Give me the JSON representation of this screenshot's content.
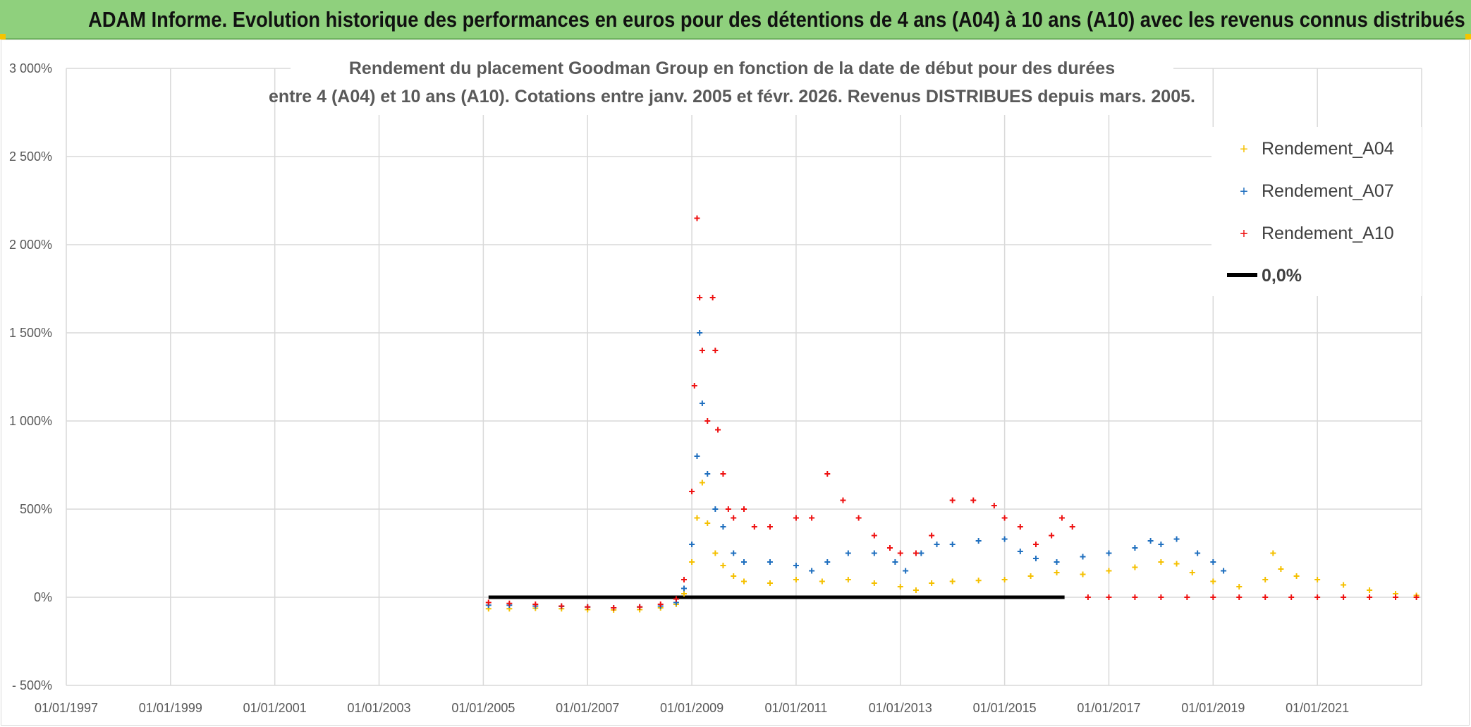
{
  "header": {
    "banner": "ADAM Informe. Evolution historique des performances en euros pour des détentions de 4 ans (A04) à 10 ans (A10) avec les revenus connus distribués"
  },
  "colors": {
    "banner_bg": "#8fd07d",
    "a04": "#f5c000",
    "a07": "#1f6fbf",
    "a10": "#ee1111",
    "zero": "#000000",
    "grid": "#d9d9d9"
  },
  "chart_data": {
    "type": "scatter",
    "title_line1": "Rendement du placement Goodman Group en fonction de la date de début pour des durées",
    "title_line2": "entre 4 (A04) et 10 ans (A10). Cotations entre janv. 2005 et févr. 2026. Revenus DISTRIBUES depuis mars. 2005.",
    "ylim": [
      -500,
      3000
    ],
    "yticks": [
      -500,
      0,
      500,
      1000,
      1500,
      2000,
      2500,
      3000
    ],
    "ytick_labels": [
      "- 500%",
      "0%",
      "500%",
      "1 000%",
      "1 500%",
      "2 000%",
      "2 500%",
      "3 000%"
    ],
    "xlim": [
      1997.0,
      2023.0
    ],
    "xticks": [
      1997,
      1999,
      2001,
      2003,
      2005,
      2007,
      2009,
      2011,
      2013,
      2015,
      2017,
      2019,
      2021
    ],
    "xtick_labels": [
      "01/01/1997",
      "01/01/1999",
      "01/01/2001",
      "01/01/2003",
      "01/01/2005",
      "01/01/2007",
      "01/01/2009",
      "01/01/2011",
      "01/01/2013",
      "01/01/2015",
      "01/01/2017",
      "01/01/2019",
      "01/01/2021"
    ],
    "grid": true,
    "legend_position": "top-right",
    "series": [
      {
        "name": "Rendement_A04",
        "color": "#f5c000",
        "x": [
          2005.1,
          2005.5,
          2006.0,
          2006.5,
          2007.0,
          2007.5,
          2008.0,
          2008.4,
          2008.7,
          2008.85,
          2009.0,
          2009.1,
          2009.2,
          2009.3,
          2009.45,
          2009.6,
          2009.8,
          2010.0,
          2010.5,
          2011.0,
          2011.5,
          2012.0,
          2012.5,
          2013.0,
          2013.3,
          2013.6,
          2014.0,
          2014.5,
          2015.0,
          2015.5,
          2016.0,
          2016.5,
          2017.0,
          2017.5,
          2018.0,
          2018.3,
          2018.6,
          2019.0,
          2019.5,
          2020.0,
          2020.15,
          2020.3,
          2020.6,
          2021.0,
          2021.5,
          2022.0,
          2022.5,
          2022.9
        ],
        "y": [
          -65,
          -65,
          -62,
          -65,
          -70,
          -72,
          -70,
          -60,
          -40,
          20,
          200,
          450,
          650,
          420,
          250,
          180,
          120,
          90,
          80,
          100,
          90,
          100,
          80,
          60,
          40,
          80,
          90,
          95,
          100,
          120,
          140,
          130,
          150,
          170,
          200,
          190,
          140,
          90,
          60,
          100,
          250,
          160,
          120,
          100,
          70,
          40,
          20,
          10
        ]
      },
      {
        "name": "Rendement_A07",
        "color": "#1f6fbf",
        "x": [
          2005.1,
          2005.5,
          2006.0,
          2006.5,
          2007.0,
          2007.5,
          2008.0,
          2008.4,
          2008.7,
          2008.85,
          2009.0,
          2009.1,
          2009.15,
          2009.2,
          2009.3,
          2009.45,
          2009.6,
          2009.8,
          2010.0,
          2010.5,
          2011.0,
          2011.3,
          2011.6,
          2012.0,
          2012.5,
          2012.9,
          2013.1,
          2013.4,
          2013.7,
          2014.0,
          2014.5,
          2015.0,
          2015.3,
          2015.6,
          2016.0,
          2016.5,
          2017.0,
          2017.5,
          2017.8,
          2018.0,
          2018.3,
          2018.7,
          2019.0,
          2019.2
        ],
        "y": [
          -45,
          -45,
          -50,
          -52,
          -55,
          -60,
          -55,
          -50,
          -30,
          50,
          300,
          800,
          1500,
          1100,
          700,
          500,
          400,
          250,
          200,
          200,
          180,
          150,
          200,
          250,
          250,
          200,
          150,
          250,
          300,
          300,
          320,
          330,
          260,
          220,
          200,
          230,
          250,
          280,
          320,
          300,
          330,
          250,
          200,
          150
        ]
      },
      {
        "name": "Rendement_A10",
        "color": "#ee1111",
        "x": [
          2005.1,
          2005.5,
          2006.0,
          2006.5,
          2007.0,
          2007.5,
          2008.0,
          2008.4,
          2008.7,
          2008.85,
          2009.0,
          2009.05,
          2009.1,
          2009.15,
          2009.2,
          2009.3,
          2009.4,
          2009.45,
          2009.5,
          2009.6,
          2009.7,
          2009.8,
          2010.0,
          2010.2,
          2010.5,
          2011.0,
          2011.3,
          2011.6,
          2011.9,
          2012.2,
          2012.5,
          2012.8,
          2013.0,
          2013.3,
          2013.6,
          2014.0,
          2014.4,
          2014.8,
          2015.0,
          2015.3,
          2015.6,
          2015.9,
          2016.1,
          2016.3,
          2016.6,
          2017.0,
          2017.5,
          2018.0,
          2018.5,
          2019.0,
          2019.5,
          2020.0,
          2020.5,
          2021.0,
          2021.5,
          2022.0,
          2022.5,
          2022.9
        ],
        "y": [
          -30,
          -35,
          -40,
          -50,
          -55,
          -60,
          -55,
          -40,
          -10,
          100,
          600,
          1200,
          2150,
          1700,
          1400,
          1000,
          1700,
          1400,
          950,
          700,
          500,
          450,
          500,
          400,
          400,
          450,
          450,
          700,
          550,
          450,
          350,
          280,
          250,
          250,
          350,
          550,
          550,
          520,
          450,
          400,
          300,
          350,
          450,
          400,
          0,
          0,
          0,
          0,
          0,
          0,
          0,
          0,
          0,
          0,
          0,
          0,
          0,
          0
        ]
      },
      {
        "name": "0,0%",
        "color": "#000000",
        "style": "line",
        "x": [
          2005.1,
          2016.15
        ],
        "y": [
          0,
          0
        ]
      }
    ]
  }
}
